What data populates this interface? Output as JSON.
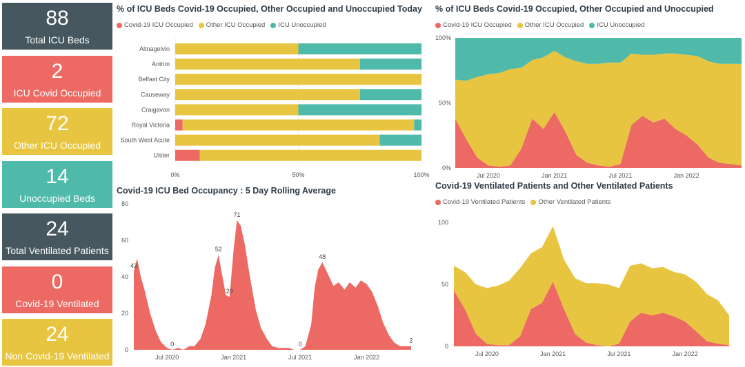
{
  "colors": {
    "covid": "#ec6a63",
    "other": "#e8c540",
    "unocc": "#4fb9aa",
    "dark": "#46575f",
    "text": "#555555",
    "grid": "#dcdcdc"
  },
  "cards": [
    {
      "value": "88",
      "label": "Total ICU Beds",
      "color": "#46575f"
    },
    {
      "value": "2",
      "label": "ICU Covid Occupied",
      "color": "#ec6a63"
    },
    {
      "value": "72",
      "label": "Other ICU Occupied",
      "color": "#e8c540"
    },
    {
      "value": "14",
      "label": "Unoccupied Beds",
      "color": "#4fb9aa"
    },
    {
      "value": "24",
      "label": "Total Ventilated Patients",
      "color": "#46575f"
    },
    {
      "value": "0",
      "label": "Covid-19 Ventilated",
      "color": "#ec6a63"
    },
    {
      "value": "24",
      "label": "Non Covid-19 Ventilated",
      "color": "#e8c540"
    }
  ],
  "panels": {
    "today": {
      "title": "% of ICU Beds Covid-19 Occupied, Other Occupied and Unoccupied Today",
      "legend": [
        "Covid-19 ICU Occupied",
        "Other ICU Occupied",
        "ICU Unoccupied"
      ]
    },
    "trend": {
      "title": "% of ICU Beds Covid-19 Occupied, Other Occupied and Unoccupied",
      "legend": [
        "Covid-19 ICU Occupied",
        "Other ICU Occupied",
        "ICU Unoccupied"
      ]
    },
    "rolling": {
      "title": "Covid-19 ICU Bed Occupancy : 5 Day Rolling Average"
    },
    "vent": {
      "title": "Covid-19 Ventilated Patients and Other Ventilated Patients",
      "legend": [
        "Covid-19 Ventilated Patients",
        "Other Ventilated Patients"
      ]
    }
  },
  "chart_data": [
    {
      "type": "bar",
      "orientation": "horizontal-stacked-100",
      "title": "% of ICU Beds Covid-19 Occupied, Other Occupied and Unoccupied Today",
      "categories": [
        "Altnagelvin",
        "Antrim",
        "Belfast City",
        "Causeway",
        "Craigavon",
        "Royal Victoria",
        "South West Acute",
        "Ulster"
      ],
      "series": [
        {
          "name": "Covid-19 ICU Occupied",
          "values": [
            0,
            0,
            0,
            0,
            0,
            3,
            0,
            10
          ]
        },
        {
          "name": "Other ICU Occupied",
          "values": [
            50,
            75,
            100,
            75,
            50,
            94,
            83,
            90
          ]
        },
        {
          "name": "ICU Unoccupied",
          "values": [
            50,
            25,
            0,
            25,
            50,
            3,
            17,
            0
          ]
        }
      ],
      "xlim": [
        0,
        100
      ],
      "xticks": [
        "0%",
        "50%",
        "100%"
      ],
      "grid": true,
      "legend": "top-left"
    },
    {
      "type": "area",
      "stacked": "100%",
      "title": "% of ICU Beds Covid-19 Occupied, Other Occupied and Unoccupied",
      "x_range": [
        "2020-04",
        "2022-06"
      ],
      "xticks": [
        "Jul 2020",
        "Jan 2021",
        "Jul 2021",
        "Jan 2022"
      ],
      "yticks": [
        "0%",
        "50%",
        "100%"
      ],
      "series": [
        {
          "name": "Covid-19 ICU Occupied",
          "x": [
            "2020-04",
            "2020-05",
            "2020-06",
            "2020-07",
            "2020-08",
            "2020-09",
            "2020-10",
            "2020-11",
            "2020-12",
            "2021-01",
            "2021-02",
            "2021-03",
            "2021-04",
            "2021-05",
            "2021-06",
            "2021-07",
            "2021-08",
            "2021-09",
            "2021-10",
            "2021-11",
            "2021-12",
            "2022-01",
            "2022-02",
            "2022-03",
            "2022-04",
            "2022-05",
            "2022-06"
          ],
          "values": [
            38,
            22,
            8,
            2,
            1,
            2,
            15,
            38,
            30,
            43,
            28,
            10,
            4,
            2,
            1,
            3,
            33,
            40,
            35,
            38,
            30,
            25,
            18,
            8,
            4,
            3,
            2
          ]
        },
        {
          "name": "Other ICU Occupied",
          "x": [
            "2020-04",
            "2020-05",
            "2020-06",
            "2020-07",
            "2020-08",
            "2020-09",
            "2020-10",
            "2020-11",
            "2020-12",
            "2021-01",
            "2021-02",
            "2021-03",
            "2021-04",
            "2021-05",
            "2021-06",
            "2021-07",
            "2021-08",
            "2021-09",
            "2021-10",
            "2021-11",
            "2021-12",
            "2022-01",
            "2022-02",
            "2022-03",
            "2022-04",
            "2022-05",
            "2022-06"
          ],
          "values": [
            30,
            45,
            62,
            70,
            72,
            74,
            62,
            45,
            55,
            47,
            57,
            72,
            76,
            78,
            80,
            78,
            55,
            47,
            52,
            50,
            58,
            62,
            68,
            74,
            76,
            77,
            78
          ]
        },
        {
          "name": "ICU Unoccupied",
          "x": [
            "2020-04",
            "2020-05",
            "2020-06",
            "2020-07",
            "2020-08",
            "2020-09",
            "2020-10",
            "2020-11",
            "2020-12",
            "2021-01",
            "2021-02",
            "2021-03",
            "2021-04",
            "2021-05",
            "2021-06",
            "2021-07",
            "2021-08",
            "2021-09",
            "2021-10",
            "2021-11",
            "2021-12",
            "2022-01",
            "2022-02",
            "2022-03",
            "2022-04",
            "2022-05",
            "2022-06"
          ],
          "values": [
            32,
            33,
            30,
            28,
            27,
            24,
            23,
            17,
            15,
            10,
            15,
            18,
            20,
            20,
            19,
            19,
            12,
            13,
            13,
            12,
            12,
            13,
            14,
            18,
            20,
            20,
            20
          ]
        }
      ],
      "ylim": [
        0,
        100
      ],
      "legend": "top-left"
    },
    {
      "type": "area",
      "title": "Covid-19 ICU Bed Occupancy : 5 Day Rolling Average",
      "x_range": [
        "2020-04",
        "2022-06"
      ],
      "xticks": [
        "Jul 2020",
        "Jan 2021",
        "Jul 2021",
        "Jan 2022"
      ],
      "yticks": [
        0,
        20,
        40,
        60,
        80
      ],
      "ylim": [
        0,
        80
      ],
      "series": [
        {
          "name": "",
          "x": [
            "2020-04-01",
            "2020-04-10",
            "2020-04-20",
            "2020-05-01",
            "2020-05-15",
            "2020-06-01",
            "2020-06-15",
            "2020-07-01",
            "2020-07-15",
            "2020-08-01",
            "2020-08-15",
            "2020-09-01",
            "2020-09-15",
            "2020-10-01",
            "2020-10-15",
            "2020-11-01",
            "2020-11-10",
            "2020-11-20",
            "2020-12-01",
            "2020-12-10",
            "2020-12-20",
            "2021-01-01",
            "2021-01-10",
            "2021-01-20",
            "2021-02-01",
            "2021-02-15",
            "2021-03-01",
            "2021-03-15",
            "2021-04-01",
            "2021-04-15",
            "2021-05-01",
            "2021-05-15",
            "2021-06-01",
            "2021-06-15",
            "2021-07-01",
            "2021-07-15",
            "2021-08-01",
            "2021-08-10",
            "2021-08-20",
            "2021-09-01",
            "2021-09-15",
            "2021-10-01",
            "2021-10-15",
            "2021-11-01",
            "2021-11-15",
            "2021-12-01",
            "2021-12-15",
            "2022-01-01",
            "2022-01-15",
            "2022-02-01",
            "2022-02-15",
            "2022-03-01",
            "2022-03-15",
            "2022-04-01",
            "2022-04-15",
            "2022-05-01"
          ],
          "values": [
            43,
            50,
            40,
            32,
            20,
            10,
            4,
            1,
            0,
            1,
            0,
            2,
            2,
            6,
            14,
            30,
            45,
            52,
            40,
            30,
            29,
            55,
            71,
            68,
            58,
            40,
            22,
            12,
            6,
            2,
            1,
            1,
            1,
            0,
            0,
            2,
            14,
            34,
            44,
            48,
            42,
            35,
            37,
            33,
            37,
            34,
            38,
            36,
            32,
            24,
            15,
            8,
            4,
            2,
            2,
            2
          ]
        }
      ],
      "data_labels": [
        {
          "x": "2020-04-01",
          "label": "43"
        },
        {
          "x": "2020-07-15",
          "label": "0"
        },
        {
          "x": "2020-11-20",
          "label": "52"
        },
        {
          "x": "2020-12-20",
          "label": "29"
        },
        {
          "x": "2021-01-10",
          "label": "71"
        },
        {
          "x": "2021-07-01",
          "label": "0"
        },
        {
          "x": "2021-09-01",
          "label": "48"
        },
        {
          "x": "2022-05-01",
          "label": "2"
        }
      ],
      "grid": false
    },
    {
      "type": "area",
      "stacked": true,
      "title": "Covid-19 Ventilated Patients and Other Ventilated Patients",
      "x_range": [
        "2020-04",
        "2022-06"
      ],
      "xticks": [
        "Jul 2020",
        "Jan 2021",
        "Jul 2021",
        "Jan 2022"
      ],
      "yticks": [
        0,
        50,
        100
      ],
      "ylim": [
        0,
        110
      ],
      "series": [
        {
          "name": "Covid-19 Ventilated Patients",
          "x": [
            "2020-04",
            "2020-05",
            "2020-06",
            "2020-07",
            "2020-08",
            "2020-09",
            "2020-10",
            "2020-11",
            "2020-12",
            "2021-01",
            "2021-02",
            "2021-03",
            "2021-04",
            "2021-05",
            "2021-06",
            "2021-07",
            "2021-08",
            "2021-09",
            "2021-10",
            "2021-11",
            "2021-12",
            "2022-01",
            "2022-02",
            "2022-03",
            "2022-04",
            "2022-05"
          ],
          "values": [
            45,
            30,
            10,
            2,
            1,
            1,
            8,
            30,
            35,
            52,
            30,
            10,
            3,
            1,
            0,
            2,
            20,
            27,
            25,
            27,
            24,
            20,
            12,
            4,
            2,
            1
          ]
        },
        {
          "name": "Other Ventilated Patients",
          "x": [
            "2020-04",
            "2020-05",
            "2020-06",
            "2020-07",
            "2020-08",
            "2020-09",
            "2020-10",
            "2020-11",
            "2020-12",
            "2021-01",
            "2021-02",
            "2021-03",
            "2021-04",
            "2021-05",
            "2021-06",
            "2021-07",
            "2021-08",
            "2021-09",
            "2021-10",
            "2021-11",
            "2021-12",
            "2022-01",
            "2022-02",
            "2022-03",
            "2022-04",
            "2022-05"
          ],
          "values": [
            20,
            30,
            40,
            45,
            48,
            52,
            55,
            45,
            45,
            45,
            40,
            45,
            48,
            50,
            50,
            45,
            45,
            40,
            38,
            37,
            36,
            38,
            40,
            38,
            35,
            24
          ]
        }
      ],
      "legend": "top-left"
    }
  ]
}
